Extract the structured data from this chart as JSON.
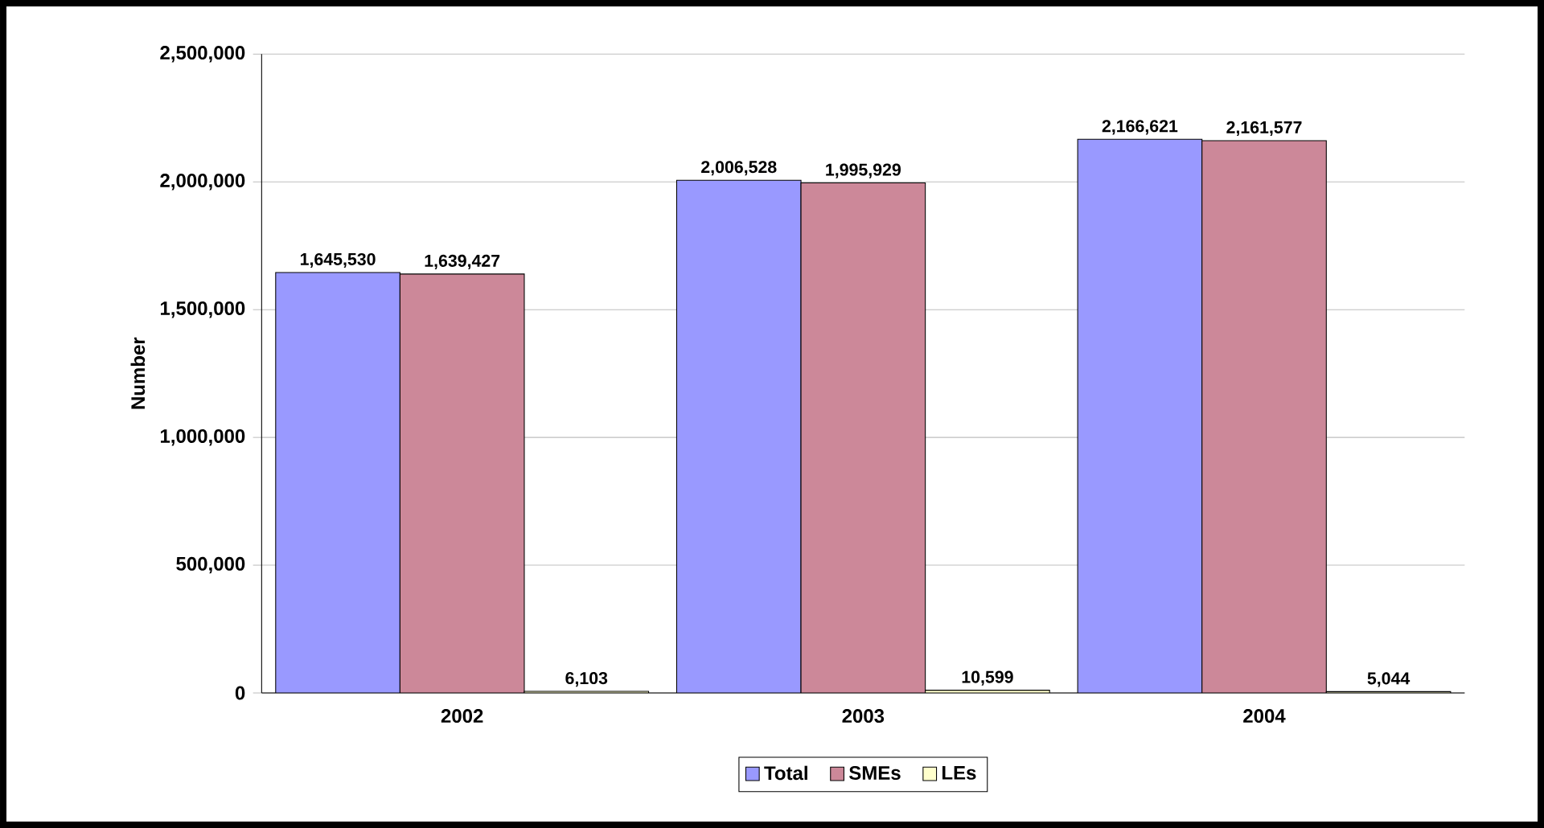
{
  "chart_data": {
    "type": "bar",
    "ylabel": "Number",
    "categories": [
      "2002",
      "2003",
      "2004"
    ],
    "series": [
      {
        "name": "Total",
        "color": "#9999ff",
        "values": [
          1645530,
          2006528,
          2166621
        ],
        "value_labels": [
          "1,645,530",
          "2,006,528",
          "2,166,621"
        ]
      },
      {
        "name": "SMEs",
        "color": "#cc8899",
        "values": [
          1639427,
          1995929,
          2161577
        ],
        "value_labels": [
          "1,639,427",
          "1,995,929",
          "2,161,577"
        ]
      },
      {
        "name": "LEs",
        "color": "#ffffcc",
        "values": [
          6103,
          10599,
          5044
        ],
        "value_labels": [
          "6,103",
          "10,599",
          "5,044"
        ]
      }
    ],
    "ylim": [
      0,
      2500000
    ],
    "yticks": [
      {
        "value": 0,
        "label": "0"
      },
      {
        "value": 500000,
        "label": "500,000"
      },
      {
        "value": 1000000,
        "label": "1,000,000"
      },
      {
        "value": 1500000,
        "label": "1,500,000"
      },
      {
        "value": 2000000,
        "label": "2,000,000"
      },
      {
        "value": 2500000,
        "label": "2,500,000"
      }
    ],
    "grid": "y",
    "legend": "bottom"
  }
}
